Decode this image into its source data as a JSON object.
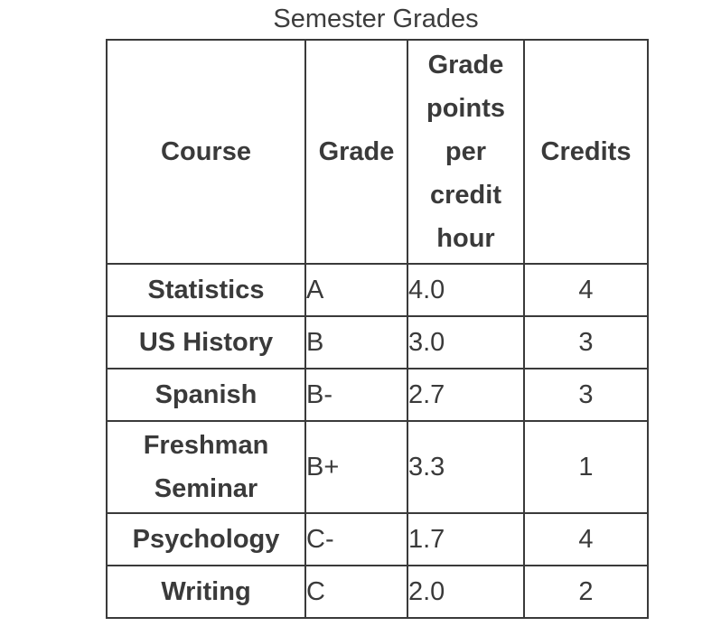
{
  "caption": "Semester Grades",
  "headers": {
    "course": "Course",
    "grade": "Grade",
    "points": "Grade points per credit hour",
    "credits": "Credits"
  },
  "rows": [
    {
      "course": "Statistics",
      "grade": "A",
      "points": "4.0",
      "credits": "4"
    },
    {
      "course": "US History",
      "grade": "B",
      "points": "3.0",
      "credits": "3"
    },
    {
      "course": "Spanish",
      "grade": "B-",
      "points": "2.7",
      "credits": "3"
    },
    {
      "course": "Freshman Seminar",
      "grade": "B+",
      "points": "3.3",
      "credits": "1"
    },
    {
      "course": "Psychology",
      "grade": "C-",
      "points": "1.7",
      "credits": "4"
    },
    {
      "course": "Writing",
      "grade": "C",
      "points": "2.0",
      "credits": "2"
    }
  ]
}
